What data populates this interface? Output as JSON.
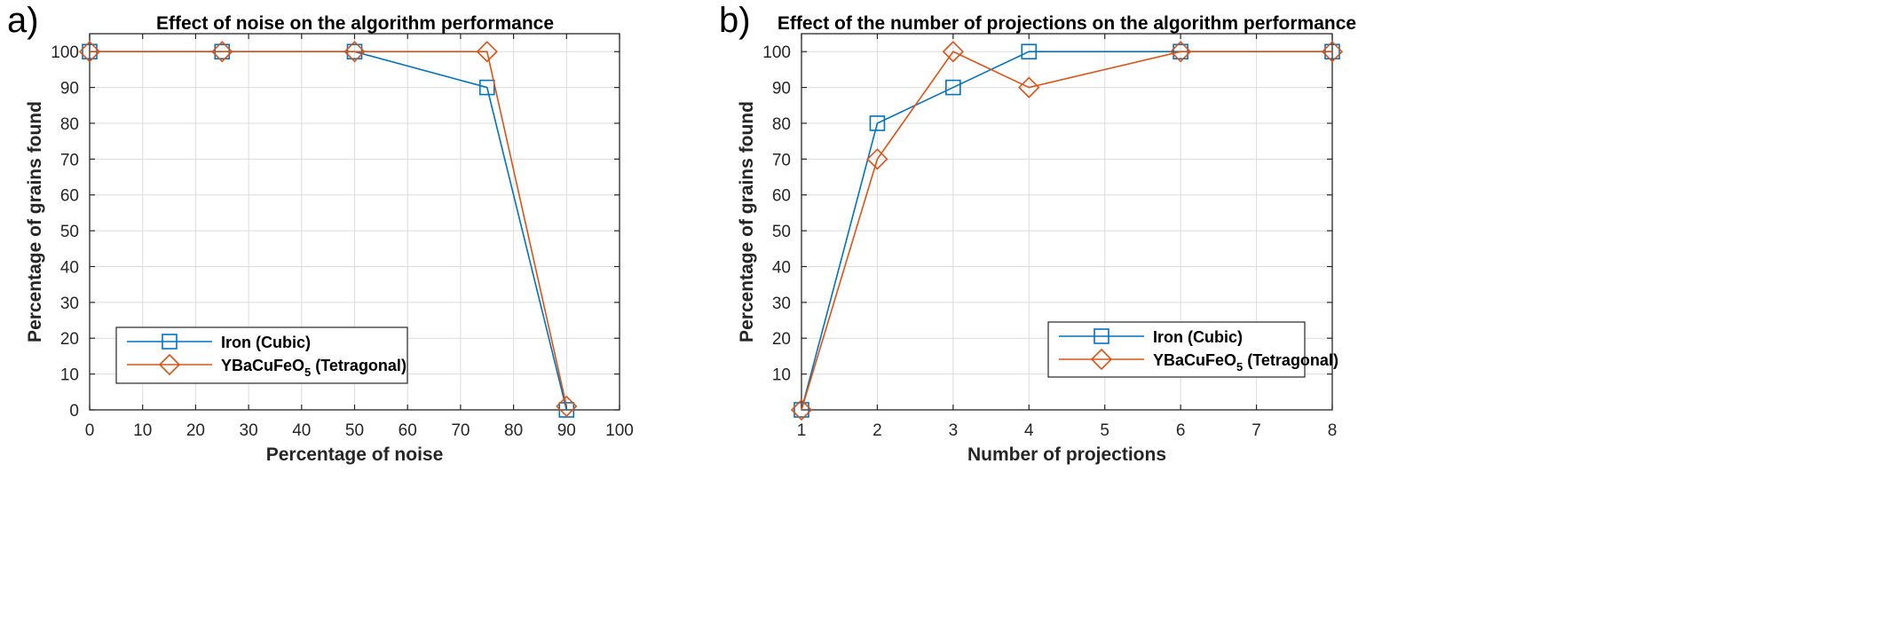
{
  "colors": {
    "series1": "#0072BD",
    "series2": "#D95319",
    "grid": "#dcdcdc",
    "axis": "#262626"
  },
  "chart_data": [
    {
      "type": "line",
      "panel_label": "a)",
      "title": "Effect of noise on the algorithm performance",
      "xlabel": "Percentage of noise",
      "ylabel": "Percentage of grains found",
      "xlim": [
        0,
        100
      ],
      "ylim": [
        0,
        105
      ],
      "xticks": [
        0,
        10,
        20,
        30,
        40,
        50,
        60,
        70,
        80,
        90,
        100
      ],
      "xtick_labels": [
        "0",
        "10",
        "20",
        "30",
        "40",
        "50",
        "60",
        "70",
        "80",
        "90",
        "100"
      ],
      "yticks": [
        0,
        10,
        20,
        30,
        40,
        50,
        60,
        70,
        80,
        90,
        100
      ],
      "ytick_labels": [
        "0",
        "10",
        "20",
        "30",
        "40",
        "50",
        "60",
        "70",
        "80",
        "90",
        "100"
      ],
      "grid": true,
      "legend_position": "bottom-left",
      "series": [
        {
          "name": "Iron (Cubic)",
          "marker": "square",
          "x": [
            0,
            25,
            50,
            75,
            90
          ],
          "y": [
            100,
            100,
            100,
            90,
            0
          ]
        },
        {
          "name": "YBaCuFeO",
          "name_subscript": "5",
          "name_suffix": " (Tetragonal)",
          "marker": "diamond",
          "x": [
            0,
            25,
            50,
            75,
            90
          ],
          "y": [
            100,
            100,
            100,
            100,
            1
          ]
        }
      ]
    },
    {
      "type": "line",
      "panel_label": "b)",
      "title": "Effect of the number of projections on the algorithm performance",
      "xlabel": "Number of projections",
      "ylabel": "Percentage of grains found",
      "xlim": [
        1,
        8
      ],
      "ylim": [
        0,
        105
      ],
      "xticks": [
        1,
        2,
        3,
        4,
        5,
        6,
        7,
        8
      ],
      "xtick_labels": [
        "1",
        "2",
        "3",
        "4",
        "5",
        "6",
        "7",
        "8"
      ],
      "yticks": [
        10,
        20,
        30,
        40,
        50,
        60,
        70,
        80,
        90,
        100
      ],
      "ytick_labels": [
        "10",
        "20",
        "30",
        "40",
        "50",
        "60",
        "70",
        "80",
        "90",
        "100"
      ],
      "grid": true,
      "legend_position": "bottom-right",
      "series": [
        {
          "name": "Iron (Cubic)",
          "marker": "square",
          "x": [
            1,
            2,
            3,
            4,
            6,
            8
          ],
          "y": [
            0,
            80,
            90,
            100,
            100,
            100
          ]
        },
        {
          "name": "YBaCuFeO",
          "name_subscript": "5",
          "name_suffix": " (Tetragonal)",
          "marker": "diamond",
          "x": [
            1,
            2,
            3,
            4,
            6,
            8
          ],
          "y": [
            0,
            70,
            100,
            90,
            100,
            100
          ]
        }
      ]
    }
  ]
}
